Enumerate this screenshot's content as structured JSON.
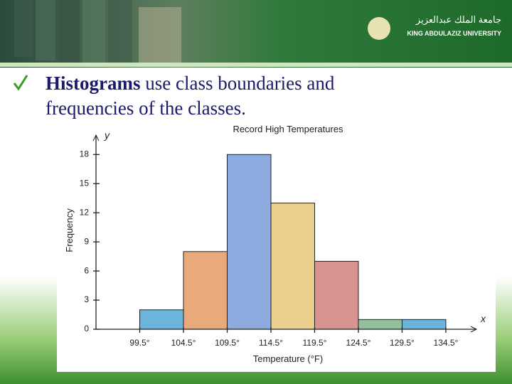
{
  "banner": {
    "university_arabic": "جامعة الملك عبدالعزيز",
    "university_english": "KING ABDULAZIZ UNIVERSITY"
  },
  "heading": {
    "bold": "Histograms",
    "line1_rest": "use class boundaries and",
    "line2": "frequencies of the classes."
  },
  "chart_data": {
    "type": "histogram",
    "title": "Record High Temperatures",
    "x_label": "Temperature (°F)",
    "y_label": "Frequency",
    "x_symbol": "x",
    "y_symbol": "y",
    "bins": [
      99.5,
      104.5,
      109.5,
      114.5,
      119.5,
      124.5,
      129.5,
      134.5
    ],
    "values": [
      2,
      8,
      18,
      13,
      7,
      1,
      1
    ],
    "colors": [
      "#6bb4da",
      "#e9a97a",
      "#8eabdf",
      "#ead08c",
      "#d99492",
      "#93bf9c",
      "#6bb4da"
    ],
    "xlim": [
      94.5,
      138
    ],
    "ylim": [
      0,
      20
    ],
    "xticks": [
      {
        "value": 99.5,
        "label": "99.5°"
      },
      {
        "value": 104.5,
        "label": "104.5°"
      },
      {
        "value": 109.5,
        "label": "109.5°"
      },
      {
        "value": 114.5,
        "label": "114.5°"
      },
      {
        "value": 119.5,
        "label": "119.5°"
      },
      {
        "value": 124.5,
        "label": "124.5°"
      },
      {
        "value": 129.5,
        "label": "129.5°"
      },
      {
        "value": 134.5,
        "label": "134.5°"
      }
    ],
    "yticks": [
      0,
      3,
      6,
      9,
      12,
      15,
      18
    ]
  }
}
